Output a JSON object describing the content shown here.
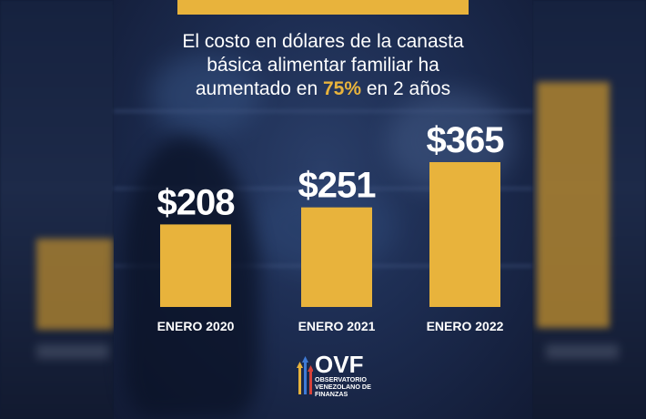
{
  "headline": {
    "line1": "El costo en dólares de la canasta",
    "line2": "básica alimentar familiar ha",
    "line3_before": "aumentado en ",
    "line3_highlight": "75%",
    "line3_after": " en 2 años"
  },
  "colors": {
    "bar": "#e8b33c",
    "highlight": "#e8b33c",
    "text": "#ffffff",
    "background": "#1d2d52"
  },
  "chart_data": {
    "type": "bar",
    "categories": [
      "ENERO 2020",
      "ENERO 2021",
      "ENERO 2022"
    ],
    "values": [
      208,
      251,
      365
    ],
    "value_labels": [
      "$208",
      "$251",
      "$365"
    ],
    "title": "",
    "xlabel": "",
    "ylabel": "",
    "ylim": [
      0,
      365
    ],
    "grid": false,
    "legend": "none"
  },
  "logo": {
    "title": "OVF",
    "line1": "OBSERVATORIO",
    "line2": "VENEZOLANO DE",
    "line3": "FINANZAS"
  }
}
